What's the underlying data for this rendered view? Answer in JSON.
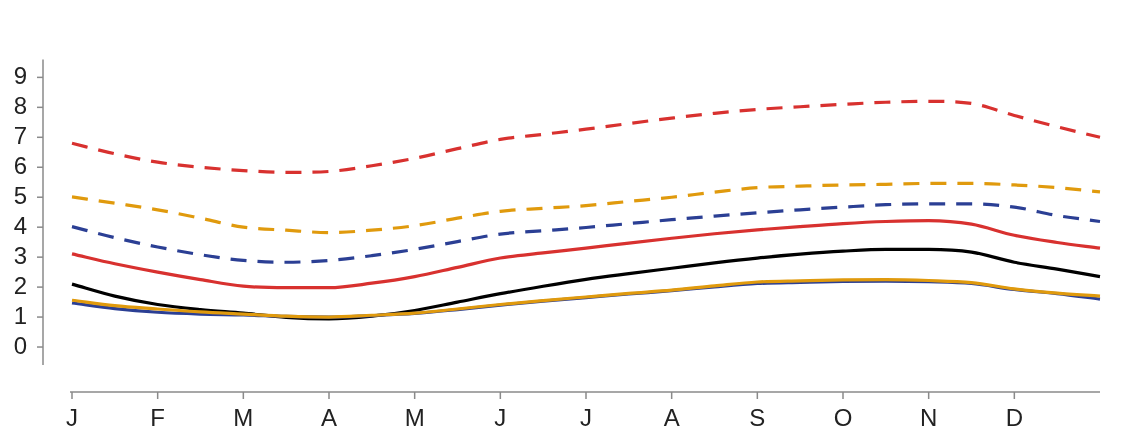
{
  "chart_data": {
    "type": "line",
    "categories": [
      "J",
      null,
      "F",
      null,
      "M",
      null,
      "A",
      null,
      "M",
      null,
      "J",
      null,
      "J",
      null,
      "A",
      null,
      "S",
      null,
      "O",
      null,
      "N",
      null,
      "D",
      null,
      null
    ],
    "ylim": [
      -0.6,
      9.6
    ],
    "yticks": [
      0,
      1,
      2,
      3,
      4,
      5,
      6,
      7,
      8,
      9
    ],
    "grid": false,
    "legend": false,
    "marker": "none",
    "series": [
      {
        "color": "#d8312f",
        "line_style": "dashed",
        "values": [
          6.8,
          6.45,
          6.17,
          6.0,
          5.89,
          5.83,
          5.86,
          6.05,
          6.3,
          6.62,
          6.93,
          7.1,
          7.27,
          7.46,
          7.64,
          7.8,
          7.93,
          8.02,
          8.1,
          8.17,
          8.2,
          8.13,
          7.73,
          7.35,
          7.0
        ]
      },
      {
        "color": "#e09a0d",
        "line_style": "dashed",
        "values": [
          5.01,
          4.8,
          4.58,
          4.3,
          4.0,
          3.9,
          3.82,
          3.9,
          4.05,
          4.3,
          4.53,
          4.63,
          4.72,
          4.86,
          5.0,
          5.17,
          5.32,
          5.37,
          5.41,
          5.43,
          5.46,
          5.46,
          5.41,
          5.32,
          5.18
        ]
      },
      {
        "color": "#2b3f94",
        "line_style": "dashed",
        "values": [
          4.02,
          3.65,
          3.34,
          3.08,
          2.89,
          2.83,
          2.89,
          3.05,
          3.26,
          3.52,
          3.77,
          3.88,
          3.99,
          4.12,
          4.25,
          4.37,
          4.48,
          4.58,
          4.67,
          4.75,
          4.78,
          4.78,
          4.67,
          4.39,
          4.19
        ]
      },
      {
        "color": "#d8312f",
        "line_style": "solid",
        "values": [
          3.11,
          2.78,
          2.5,
          2.25,
          2.03,
          1.98,
          1.98,
          2.13,
          2.35,
          2.66,
          2.97,
          3.14,
          3.3,
          3.47,
          3.63,
          3.78,
          3.91,
          4.02,
          4.12,
          4.19,
          4.22,
          4.1,
          3.73,
          3.49,
          3.3
        ]
      },
      {
        "color": "#000000",
        "line_style": "solid",
        "values": [
          2.1,
          1.7,
          1.42,
          1.25,
          1.13,
          0.99,
          0.94,
          1.03,
          1.22,
          1.5,
          1.78,
          2.03,
          2.26,
          2.45,
          2.63,
          2.81,
          2.97,
          3.1,
          3.2,
          3.26,
          3.26,
          3.17,
          2.83,
          2.6,
          2.35
        ]
      },
      {
        "color": "#2b3f94",
        "line_style": "solid",
        "values": [
          1.47,
          1.28,
          1.16,
          1.1,
          1.07,
          1.02,
          1.0,
          1.05,
          1.12,
          1.25,
          1.4,
          1.53,
          1.65,
          1.77,
          1.88,
          2.01,
          2.12,
          2.16,
          2.19,
          2.2,
          2.18,
          2.12,
          1.92,
          1.78,
          1.6
        ]
      },
      {
        "color": "#e09a0d",
        "line_style": "solid",
        "values": [
          1.56,
          1.38,
          1.27,
          1.17,
          1.1,
          1.03,
          1.0,
          1.06,
          1.13,
          1.27,
          1.42,
          1.55,
          1.67,
          1.79,
          1.9,
          2.04,
          2.17,
          2.21,
          2.24,
          2.25,
          2.22,
          2.15,
          1.94,
          1.8,
          1.7
        ]
      }
    ]
  }
}
